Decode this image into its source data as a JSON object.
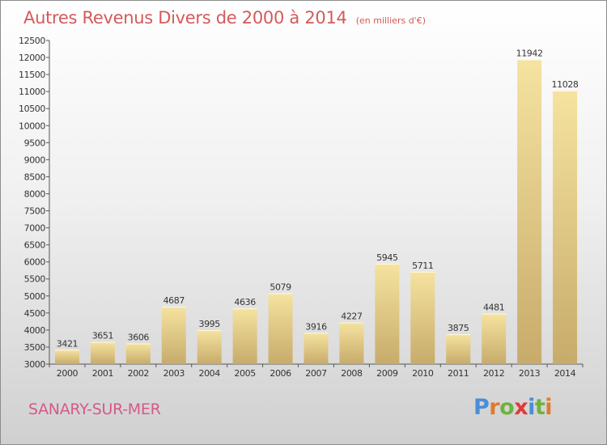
{
  "title": "Autres Revenus Divers de 2000 à 2014",
  "subtitle": "(en milliers d'€)",
  "city": "SANARY-SUR-MER",
  "brand": {
    "letters": [
      "P",
      "r",
      "o",
      "x",
      "i",
      "t",
      "i"
    ],
    "colors": [
      "#4a8ed6",
      "#e07b2e",
      "#6cb33f",
      "#e03a3a",
      "#4a8ed6",
      "#6cb33f",
      "#e07b2e"
    ]
  },
  "colors": {
    "bar_light": "#f6e3a0",
    "bar_dark": "#c7ab6b",
    "text": "#333333",
    "axis": "#555555"
  },
  "chart_data": {
    "type": "bar",
    "categories": [
      "2000",
      "2001",
      "2002",
      "2003",
      "2004",
      "2005",
      "2006",
      "2007",
      "2008",
      "2009",
      "2010",
      "2011",
      "2012",
      "2013",
      "2014"
    ],
    "values": [
      3421,
      3651,
      3606,
      4687,
      3995,
      4636,
      5079,
      3916,
      4227,
      5945,
      5711,
      3875,
      4481,
      11942,
      11028
    ],
    "ylim": [
      3000,
      12500
    ],
    "yticks": [
      3000,
      3500,
      4000,
      4500,
      5000,
      5500,
      6000,
      6500,
      7000,
      7500,
      8000,
      8500,
      9000,
      9500,
      10000,
      10500,
      11000,
      11500,
      12000,
      12500
    ],
    "grid": false
  }
}
